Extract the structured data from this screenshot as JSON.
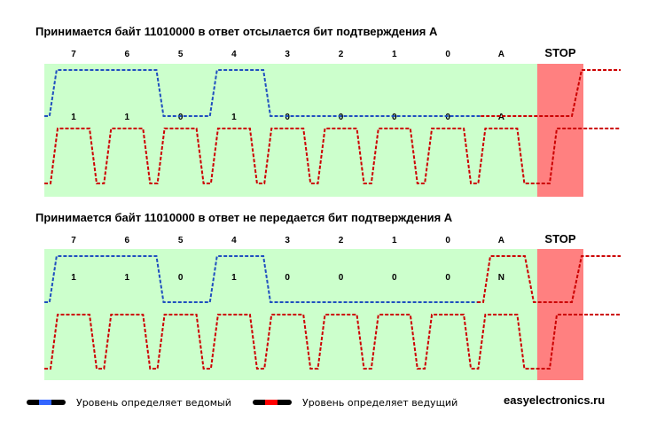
{
  "colors": {
    "background_green": "#ccffcc",
    "stop_red": "#ff8080",
    "slave_line": "#1f4fbf",
    "master_line": "#cc0000"
  },
  "diagrams": [
    {
      "title": "Принимается байт 11010000 в ответ отсылается бит подтверждения А",
      "bit_headers": [
        "7",
        "6",
        "5",
        "4",
        "3",
        "2",
        "1",
        "0",
        "A"
      ],
      "stop_label": "STOP",
      "sda_labels": [
        "1",
        "1",
        "0",
        "1",
        "0",
        "0",
        "0",
        "0",
        "A"
      ],
      "sda_levels": [
        1,
        1,
        0,
        1,
        0,
        0,
        0,
        0,
        0
      ]
    },
    {
      "title": "Принимается байт 11010000 в ответ не передается бит подтверждения А",
      "bit_headers": [
        "7",
        "6",
        "5",
        "4",
        "3",
        "2",
        "1",
        "0",
        "A"
      ],
      "stop_label": "STOP",
      "sda_labels": [
        "1",
        "1",
        "0",
        "1",
        "0",
        "0",
        "0",
        "0",
        "N"
      ],
      "sda_levels": [
        1,
        1,
        0,
        1,
        0,
        0,
        0,
        0,
        1
      ]
    }
  ],
  "legend": {
    "slave_text": "Уровень определяет ведомый",
    "master_text": "Уровень определяет ведущий",
    "site": "easyelectronics.ru"
  }
}
